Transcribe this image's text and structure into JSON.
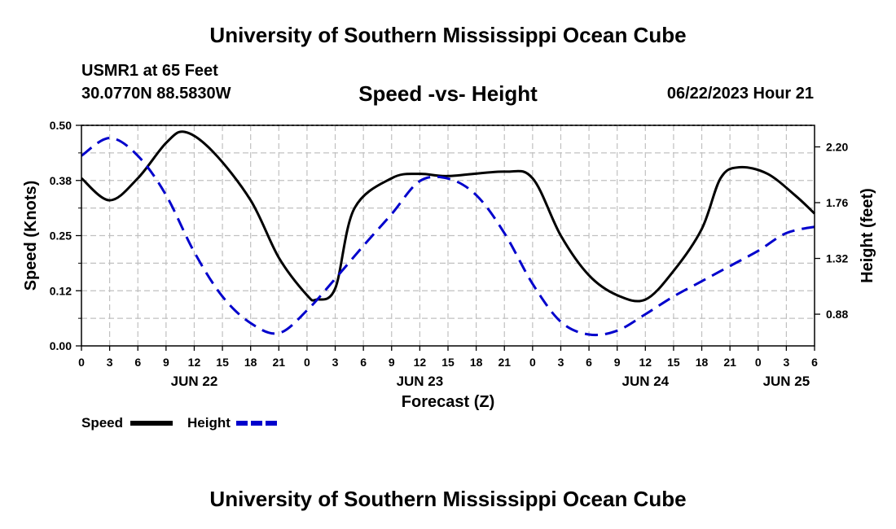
{
  "header": {
    "title": "University of Southern Mississippi Ocean Cube",
    "station": "USMR1 at 65 Feet",
    "coords": "30.0770N  88.5830W",
    "chart_title": "Speed -vs- Height",
    "datetime": "06/22/2023 Hour 21"
  },
  "footer": {
    "title": "University of Southern Mississippi Ocean Cube"
  },
  "chart_data": {
    "type": "line",
    "title": "Speed -vs- Height",
    "xlabel": "Forecast (Z)",
    "ylabel": "Speed (Knots)",
    "y2label": "Height (feet)",
    "xlim": [
      0,
      78
    ],
    "ylim": [
      0,
      0.5
    ],
    "y2lim": [
      0.63,
      2.37
    ],
    "hour_ticks": [
      "0",
      "3",
      "6",
      "9",
      "12",
      "15",
      "18",
      "21",
      "0",
      "3",
      "6",
      "9",
      "12",
      "15",
      "18",
      "21",
      "0",
      "3",
      "6",
      "9",
      "12",
      "15",
      "18",
      "21",
      "0",
      "3",
      "6"
    ],
    "day_labels": [
      {
        "label": "JUN 22",
        "at": 12
      },
      {
        "label": "JUN 23",
        "at": 36
      },
      {
        "label": "JUN 24",
        "at": 60
      },
      {
        "label": "JUN 25",
        "at": 75
      }
    ],
    "yticks": [
      "0.00",
      "0.12",
      "0.25",
      "0.38",
      "0.50"
    ],
    "y2ticks": [
      "0.88",
      "1.32",
      "1.76",
      "2.20"
    ],
    "grid": true,
    "series": [
      {
        "name": "Speed",
        "axis": "left",
        "color": "#000000",
        "dash": "solid",
        "x": [
          0,
          3,
          6,
          9,
          11,
          14,
          18,
          21,
          24,
          25,
          27,
          29,
          33,
          36,
          39,
          45,
          48,
          51,
          54,
          57,
          60,
          63,
          66,
          68,
          70,
          73,
          76,
          78
        ],
        "values": [
          0.38,
          0.33,
          0.38,
          0.46,
          0.485,
          0.44,
          0.33,
          0.2,
          0.115,
          0.105,
          0.13,
          0.31,
          0.38,
          0.39,
          0.385,
          0.395,
          0.38,
          0.25,
          0.16,
          0.115,
          0.105,
          0.17,
          0.265,
          0.38,
          0.405,
          0.39,
          0.34,
          0.3
        ]
      },
      {
        "name": "Height",
        "axis": "right",
        "color": "#0000cc",
        "dash": "dashed",
        "x": [
          0,
          3,
          6,
          9,
          12,
          15,
          18,
          21,
          24,
          27,
          30,
          33,
          36,
          39,
          42,
          45,
          48,
          51,
          54,
          57,
          60,
          63,
          66,
          69,
          72,
          75,
          78
        ],
        "values": [
          2.13,
          2.27,
          2.13,
          1.82,
          1.37,
          1.02,
          0.81,
          0.73,
          0.91,
          1.16,
          1.42,
          1.67,
          1.93,
          1.95,
          1.82,
          1.52,
          1.12,
          0.82,
          0.72,
          0.75,
          0.88,
          1.02,
          1.14,
          1.26,
          1.38,
          1.52,
          1.57
        ]
      }
    ],
    "legend": [
      {
        "label": "Speed",
        "color": "#000000",
        "dash": "solid"
      },
      {
        "label": "Height",
        "color": "#0000cc",
        "dash": "dashed"
      }
    ]
  }
}
